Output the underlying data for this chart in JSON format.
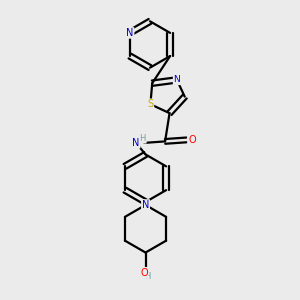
{
  "bg_color": "#ebebeb",
  "bond_color": "#000000",
  "bond_width": 1.6,
  "atom_colors": {
    "N": "#0000cc",
    "O": "#ff0000",
    "S": "#ccaa00",
    "C": "#000000",
    "H": "#6fa0a0"
  },
  "font_size": 7.0,
  "figsize": [
    3.0,
    3.0
  ],
  "dpi": 100
}
